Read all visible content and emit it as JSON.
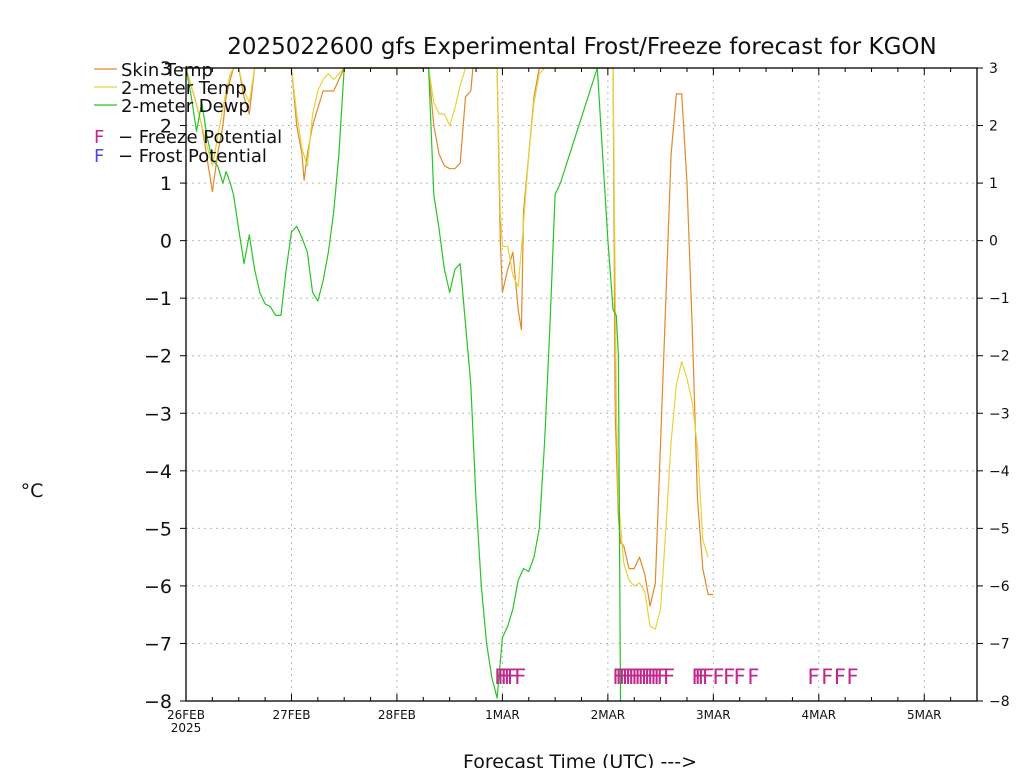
{
  "chart_data": {
    "type": "line",
    "title": "2025022600 gfs Experimental Frost/Freeze forecast for KGON",
    "xlabel": "Forecast Time (UTC) --->",
    "ylabel": "°C",
    "ylim": [
      -8,
      3
    ],
    "yticks": [
      "3",
      "2",
      "1",
      "0",
      "−1",
      "−2",
      "−3",
      "−4",
      "−5",
      "−6",
      "−7",
      "−8"
    ],
    "xlim_days": [
      0,
      7.5
    ],
    "xtick_labels": [
      "26FEB",
      "27FEB",
      "28FEB",
      "1MAR",
      "2MAR",
      "3MAR",
      "4MAR",
      "5MAR"
    ],
    "xtick_year": "2025",
    "grid": true,
    "legend": {
      "position": "top-left",
      "entries": [
        "Skin Temp",
        "2-meter Temp",
        "2-meter Dewp"
      ],
      "marker_entries": [
        {
          "glyph": "F",
          "text": "−  Freeze Potential"
        },
        {
          "glyph": "F",
          "text": "−  Frost Potential"
        }
      ]
    },
    "colors": {
      "skin": "#e08a2c",
      "temp2m": "#e8d23a",
      "dewp": "#27c427",
      "freeze": "#c0288c",
      "frost": "#4a4ae8"
    },
    "series": [
      {
        "name": "Skin Temp",
        "x": [
          0.0,
          0.08,
          0.15,
          0.22,
          0.25,
          0.3,
          0.35,
          0.38,
          0.42,
          0.45,
          0.5,
          0.55,
          0.6,
          0.65,
          1.0,
          1.05,
          1.1,
          1.12,
          1.15,
          1.2,
          1.25,
          1.3,
          1.35,
          1.4,
          1.45,
          1.5,
          2.3,
          2.35,
          2.4,
          2.45,
          2.5,
          2.55,
          2.6,
          2.65,
          2.7,
          2.72,
          2.95,
          2.98,
          3.0,
          3.05,
          3.1,
          3.15,
          3.18,
          3.2,
          3.25,
          3.3,
          3.35,
          3.4,
          4.05,
          4.07,
          4.1,
          4.12,
          4.15,
          4.2,
          4.25,
          4.3,
          4.35,
          4.4,
          4.45,
          4.5,
          4.55,
          4.6,
          4.65,
          4.7,
          4.75,
          4.8,
          4.85,
          4.9,
          4.95,
          5.0
        ],
        "y": [
          3.0,
          2.5,
          2.0,
          1.2,
          0.85,
          1.5,
          2.0,
          2.5,
          2.8,
          3.0,
          3.0,
          2.5,
          2.2,
          3.0,
          3.0,
          2.0,
          1.5,
          1.05,
          1.5,
          2.0,
          2.3,
          2.6,
          2.6,
          2.6,
          2.8,
          3.0,
          3.0,
          2.0,
          1.5,
          1.3,
          1.25,
          1.25,
          1.35,
          2.5,
          2.6,
          3.0,
          3.0,
          0.0,
          -0.9,
          -0.5,
          -0.2,
          -1.2,
          -1.55,
          0.5,
          1.5,
          2.5,
          3.0,
          3.0,
          3.0,
          -3.0,
          -4.8,
          -5.25,
          -5.3,
          -5.7,
          -5.7,
          -5.5,
          -5.8,
          -6.35,
          -5.95,
          -3.5,
          -1.0,
          1.5,
          2.55,
          2.55,
          1.0,
          -1.5,
          -4.5,
          -5.7,
          -6.15,
          -6.15
        ]
      },
      {
        "name": "2-meter Temp",
        "x": [
          0.0,
          0.08,
          0.15,
          0.22,
          0.25,
          0.3,
          0.35,
          0.38,
          0.42,
          0.45,
          0.5,
          0.55,
          0.6,
          0.65,
          1.0,
          1.05,
          1.1,
          1.15,
          1.2,
          1.25,
          1.3,
          1.35,
          1.4,
          1.45,
          1.5,
          2.3,
          2.35,
          2.4,
          2.45,
          2.5,
          2.55,
          2.6,
          2.65,
          2.95,
          2.98,
          3.0,
          3.05,
          3.1,
          3.15,
          3.2,
          3.25,
          3.3,
          3.35,
          3.4,
          4.05,
          4.08,
          4.1,
          4.15,
          4.2,
          4.25,
          4.3,
          4.35,
          4.4,
          4.45,
          4.5,
          4.55,
          4.6,
          4.65,
          4.7,
          4.75,
          4.8,
          4.85,
          4.9,
          4.95
        ],
        "y": [
          3.0,
          2.5,
          2.0,
          1.5,
          1.3,
          1.8,
          2.3,
          2.6,
          2.9,
          3.0,
          3.0,
          2.6,
          2.4,
          3.0,
          3.0,
          2.2,
          1.6,
          1.3,
          2.2,
          2.6,
          2.8,
          2.9,
          2.8,
          2.9,
          3.0,
          3.0,
          2.4,
          2.2,
          2.2,
          2.0,
          2.3,
          2.7,
          3.0,
          3.0,
          0.5,
          -0.1,
          -0.1,
          -0.6,
          -0.8,
          0.3,
          1.5,
          2.4,
          2.9,
          3.0,
          3.0,
          -2.8,
          -4.5,
          -5.6,
          -5.9,
          -6.0,
          -5.95,
          -6.1,
          -6.7,
          -6.75,
          -6.4,
          -5.0,
          -3.5,
          -2.5,
          -2.1,
          -2.4,
          -2.8,
          -3.6,
          -5.2,
          -5.5
        ]
      },
      {
        "name": "2-meter Dewp",
        "x": [
          0.0,
          0.05,
          0.1,
          0.15,
          0.2,
          0.25,
          0.3,
          0.35,
          0.38,
          0.42,
          0.45,
          0.5,
          0.55,
          0.6,
          0.65,
          0.7,
          0.75,
          0.8,
          0.85,
          0.9,
          0.95,
          1.0,
          1.05,
          1.1,
          1.15,
          1.2,
          1.25,
          1.3,
          1.35,
          1.4,
          1.45,
          1.5,
          2.3,
          2.35,
          2.4,
          2.45,
          2.5,
          2.55,
          2.6,
          2.7,
          2.75,
          2.8,
          2.85,
          2.9,
          2.93,
          2.95,
          3.0,
          3.05,
          3.1,
          3.15,
          3.2,
          3.25,
          3.3,
          3.35,
          3.4,
          3.45,
          3.5,
          3.55,
          3.9,
          3.95,
          4.0,
          4.05,
          4.08,
          4.1,
          4.12
        ],
        "y": [
          3.0,
          2.5,
          1.9,
          2.4,
          1.8,
          1.4,
          1.3,
          1.0,
          1.2,
          1.0,
          0.8,
          0.2,
          -0.4,
          0.1,
          -0.5,
          -0.9,
          -1.1,
          -1.15,
          -1.3,
          -1.3,
          -0.5,
          0.15,
          0.25,
          0.05,
          -0.2,
          -0.9,
          -1.05,
          -0.7,
          -0.2,
          0.5,
          1.5,
          3.0,
          3.0,
          0.8,
          0.2,
          -0.5,
          -0.9,
          -0.5,
          -0.4,
          -2.5,
          -4.5,
          -6.0,
          -7.0,
          -7.6,
          -7.8,
          -7.95,
          -6.9,
          -6.7,
          -6.4,
          -5.9,
          -5.7,
          -5.75,
          -5.5,
          -5.0,
          -3.5,
          -1.5,
          0.8,
          1.0,
          3.0,
          1.5,
          0.0,
          -1.2,
          -1.3,
          -2.0,
          -8.0
        ]
      }
    ],
    "markers": {
      "row_y": -7.55,
      "glyph": "F",
      "freeze_times": [
        2.98,
        3.01,
        3.04,
        3.07,
        3.1,
        3.17,
        4.1,
        4.13,
        4.16,
        4.19,
        4.22,
        4.25,
        4.28,
        4.31,
        4.34,
        4.37,
        4.4,
        4.43,
        4.46,
        4.49,
        4.52,
        4.58,
        4.85,
        4.88,
        4.91,
        4.95,
        5.05,
        5.15,
        5.25,
        5.38,
        5.95,
        6.08,
        6.2,
        6.32
      ],
      "frost_times": []
    }
  }
}
